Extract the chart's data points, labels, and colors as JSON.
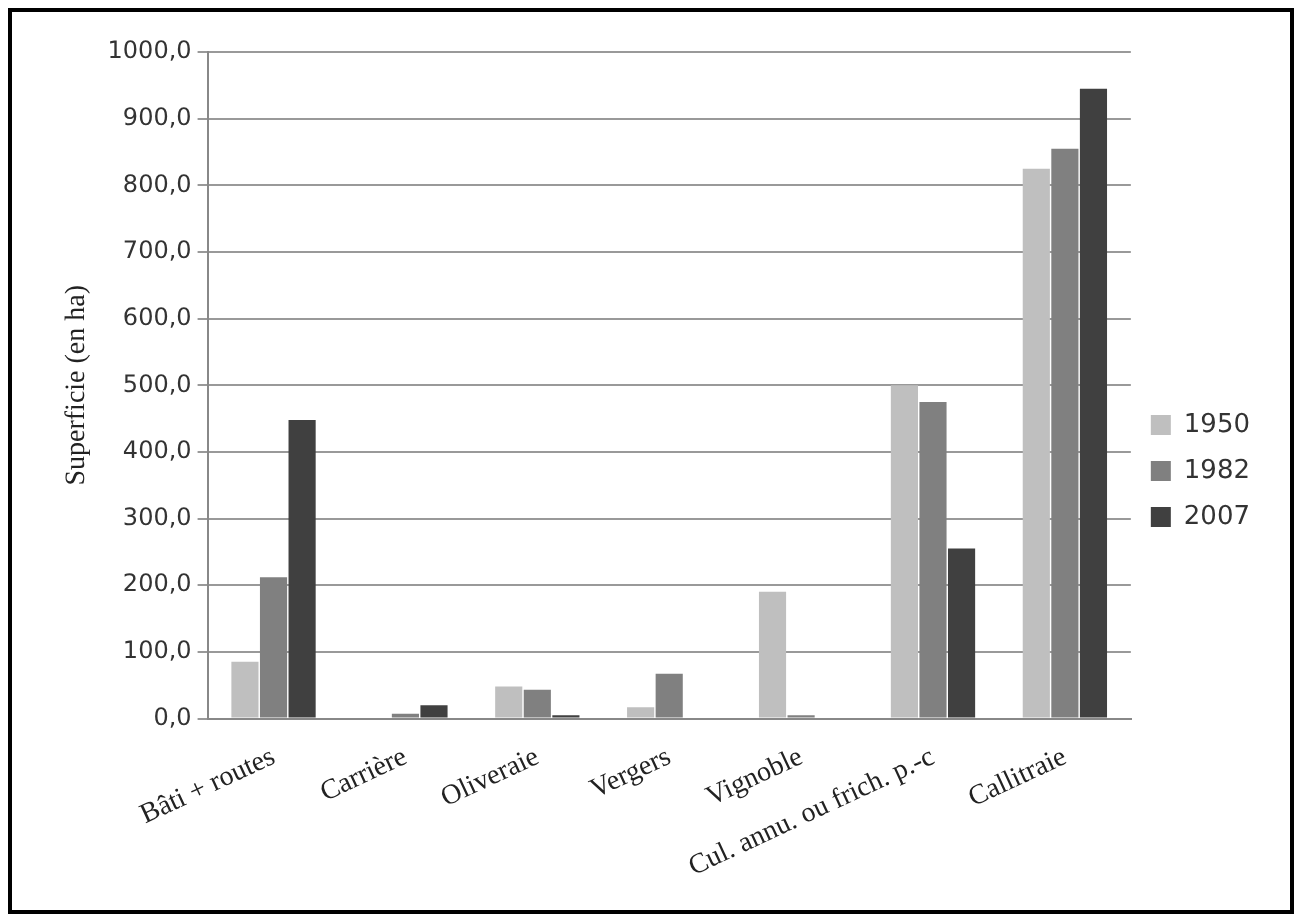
{
  "chart_data": {
    "type": "bar",
    "ylabel": "Superficie (en ha)",
    "categories": [
      "Bâti + routes",
      "Carrière",
      "Oliveraie",
      "Vergers",
      "Vignoble",
      "Cul. annu. ou frich. p.-c",
      "Callitraie"
    ],
    "series": [
      {
        "name": "1950",
        "color": "#bfbfbf",
        "values": [
          85,
          0,
          48,
          17,
          190,
          500,
          825
        ]
      },
      {
        "name": "1982",
        "color": "#808080",
        "values": [
          212,
          7,
          43,
          67,
          5,
          475,
          855
        ]
      },
      {
        "name": "2007",
        "color": "#404040",
        "values": [
          448,
          20,
          5,
          0,
          null,
          255,
          945
        ]
      }
    ],
    "ylim": [
      0,
      1000
    ],
    "yticks": [
      {
        "value": 0,
        "label": "0,0"
      },
      {
        "value": 100,
        "label": "100,0"
      },
      {
        "value": 200,
        "label": "200,0"
      },
      {
        "value": 300,
        "label": "300,0"
      },
      {
        "value": 400,
        "label": "400,0"
      },
      {
        "value": 500,
        "label": "500,0"
      },
      {
        "value": 600,
        "label": "600,0"
      },
      {
        "value": 700,
        "label": "700,0"
      },
      {
        "value": 800,
        "label": "800,0"
      },
      {
        "value": 900,
        "label": "900,0"
      },
      {
        "value": 1000,
        "label": "1000,0"
      }
    ],
    "grid": "y",
    "legend": "right"
  }
}
